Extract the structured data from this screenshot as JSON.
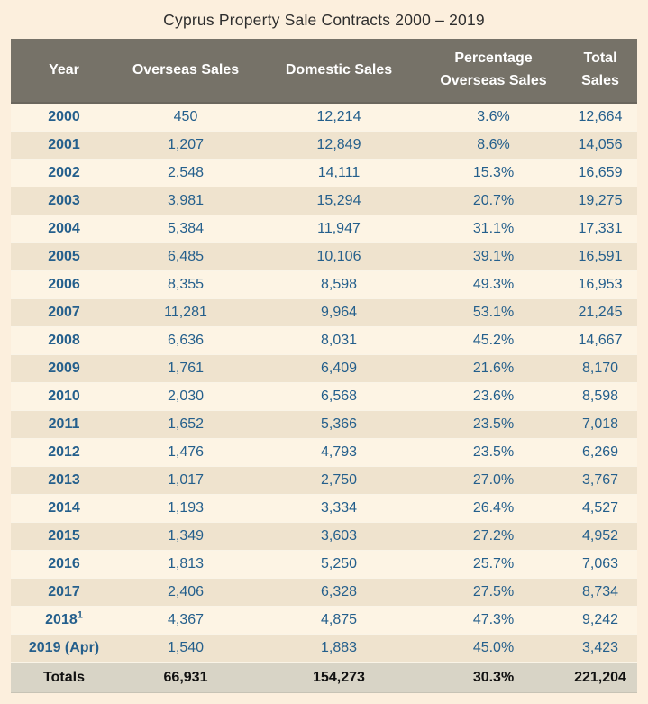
{
  "title": "Cyprus Property Sale Contracts 2000 – 2019",
  "table": {
    "columns": [
      "Year",
      "Overseas Sales",
      "Domestic Sales",
      "Percentage Overseas Sales",
      "Total Sales"
    ],
    "rows": [
      {
        "year": "2000",
        "overseas": "450",
        "domestic": "12,214",
        "pct": "3.6%",
        "total": "12,664"
      },
      {
        "year": "2001",
        "overseas": "1,207",
        "domestic": "12,849",
        "pct": "8.6%",
        "total": "14,056"
      },
      {
        "year": "2002",
        "overseas": "2,548",
        "domestic": "14,111",
        "pct": "15.3%",
        "total": "16,659"
      },
      {
        "year": "2003",
        "overseas": "3,981",
        "domestic": "15,294",
        "pct": "20.7%",
        "total": "19,275"
      },
      {
        "year": "2004",
        "overseas": "5,384",
        "domestic": "11,947",
        "pct": "31.1%",
        "total": "17,331"
      },
      {
        "year": "2005",
        "overseas": "6,485",
        "domestic": "10,106",
        "pct": "39.1%",
        "total": "16,591"
      },
      {
        "year": "2006",
        "overseas": "8,355",
        "domestic": "8,598",
        "pct": "49.3%",
        "total": "16,953"
      },
      {
        "year": "2007",
        "overseas": "11,281",
        "domestic": "9,964",
        "pct": "53.1%",
        "total": "21,245"
      },
      {
        "year": "2008",
        "overseas": "6,636",
        "domestic": "8,031",
        "pct": "45.2%",
        "total": "14,667"
      },
      {
        "year": "2009",
        "overseas": "1,761",
        "domestic": "6,409",
        "pct": "21.6%",
        "total": "8,170"
      },
      {
        "year": "2010",
        "overseas": "2,030",
        "domestic": "6,568",
        "pct": "23.6%",
        "total": "8,598"
      },
      {
        "year": "2011",
        "overseas": "1,652",
        "domestic": "5,366",
        "pct": "23.5%",
        "total": "7,018"
      },
      {
        "year": "2012",
        "overseas": "1,476",
        "domestic": "4,793",
        "pct": "23.5%",
        "total": "6,269"
      },
      {
        "year": "2013",
        "overseas": "1,017",
        "domestic": "2,750",
        "pct": "27.0%",
        "total": "3,767"
      },
      {
        "year": "2014",
        "overseas": "1,193",
        "domestic": "3,334",
        "pct": "26.4%",
        "total": "4,527"
      },
      {
        "year": "2015",
        "overseas": "1,349",
        "domestic": "3,603",
        "pct": "27.2%",
        "total": "4,952"
      },
      {
        "year": "2016",
        "overseas": "1,813",
        "domestic": "5,250",
        "pct": "25.7%",
        "total": "7,063"
      },
      {
        "year": "2017",
        "overseas": "2,406",
        "domestic": "6,328",
        "pct": "27.5%",
        "total": "8,734"
      },
      {
        "year": "2018",
        "year_sup": "1",
        "overseas": "4,367",
        "domestic": "4,875",
        "pct": "47.3%",
        "total": "9,242"
      },
      {
        "year": "2019 (Apr)",
        "overseas": "1,540",
        "domestic": "1,883",
        "pct": "45.0%",
        "total": "3,423"
      }
    ],
    "totals": {
      "label": "Totals",
      "overseas": "66,931",
      "domestic": "154,273",
      "pct": "30.3%",
      "total": "221,204"
    }
  },
  "colors": {
    "page_background": "#fcefdd",
    "header_background": "#767268",
    "header_text": "#ffffff",
    "row_light": "#fdf4e4",
    "row_dark": "#efe3ce",
    "data_text": "#245f8c",
    "totals_background": "#d8d4c6",
    "totals_text": "#101010"
  },
  "chart_data": {
    "type": "table",
    "title": "Cyprus Property Sale Contracts 2000 – 2019",
    "columns": [
      "Year",
      "Overseas Sales",
      "Domestic Sales",
      "Percentage Overseas Sales",
      "Total Sales"
    ],
    "rows": [
      [
        "2000",
        450,
        12214,
        "3.6%",
        12664
      ],
      [
        "2001",
        1207,
        12849,
        "8.6%",
        14056
      ],
      [
        "2002",
        2548,
        14111,
        "15.3%",
        16659
      ],
      [
        "2003",
        3981,
        15294,
        "20.7%",
        19275
      ],
      [
        "2004",
        5384,
        11947,
        "31.1%",
        17331
      ],
      [
        "2005",
        6485,
        10106,
        "39.1%",
        16591
      ],
      [
        "2006",
        8355,
        8598,
        "49.3%",
        16953
      ],
      [
        "2007",
        11281,
        9964,
        "53.1%",
        21245
      ],
      [
        "2008",
        6636,
        8031,
        "45.2%",
        14667
      ],
      [
        "2009",
        1761,
        6409,
        "21.6%",
        8170
      ],
      [
        "2010",
        2030,
        6568,
        "23.6%",
        8598
      ],
      [
        "2011",
        1652,
        5366,
        "23.5%",
        7018
      ],
      [
        "2012",
        1476,
        4793,
        "23.5%",
        6269
      ],
      [
        "2013",
        1017,
        2750,
        "27.0%",
        3767
      ],
      [
        "2014",
        1193,
        3334,
        "26.4%",
        4527
      ],
      [
        "2015",
        1349,
        3603,
        "27.2%",
        4952
      ],
      [
        "2016",
        1813,
        5250,
        "25.7%",
        7063
      ],
      [
        "2017",
        2406,
        6328,
        "27.5%",
        8734
      ],
      [
        "2018 (footnote 1)",
        4367,
        4875,
        "47.3%",
        9242
      ],
      [
        "2019 (Apr)",
        1540,
        1883,
        "45.0%",
        3423
      ]
    ],
    "totals_row": [
      "Totals",
      66931,
      154273,
      "30.3%",
      221204
    ]
  }
}
